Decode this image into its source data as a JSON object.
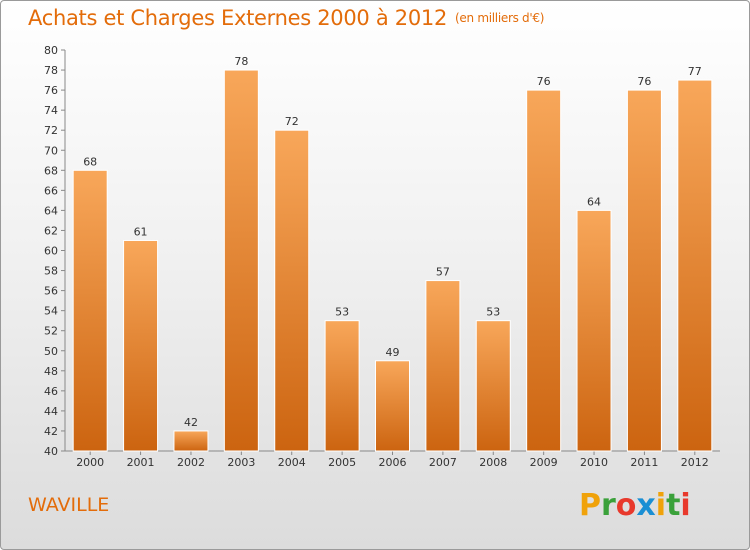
{
  "header": {
    "title": "Achats et Charges Externes 2000 à 2012",
    "unit": "(en milliers d'€)"
  },
  "footer": {
    "commune": "WAVILLE",
    "logo_letters": [
      "P",
      "r",
      "o",
      "x",
      "i",
      "t",
      "i"
    ],
    "logo_colors": [
      "#f0a20a",
      "#3aa13a",
      "#e8392c",
      "#1a8fd4",
      "#f0a20a",
      "#3aa13a",
      "#e8392c"
    ]
  },
  "colors": {
    "bar_light": "#f8a75a",
    "bar_dark": "#cc6410",
    "accent": "#e36c0a"
  },
  "chart_data": {
    "type": "bar",
    "title": "Achats et Charges Externes 2000 à 2012",
    "subtitle": "(en milliers d'€)",
    "categories": [
      "2000",
      "2001",
      "2002",
      "2003",
      "2004",
      "2005",
      "2006",
      "2007",
      "2008",
      "2009",
      "2010",
      "2011",
      "2012"
    ],
    "values": [
      68,
      61,
      42,
      78,
      72,
      53,
      49,
      57,
      53,
      76,
      64,
      76,
      77
    ],
    "ylim": [
      40,
      80
    ],
    "ytick_step": 2,
    "grid": false,
    "legend": "none"
  }
}
